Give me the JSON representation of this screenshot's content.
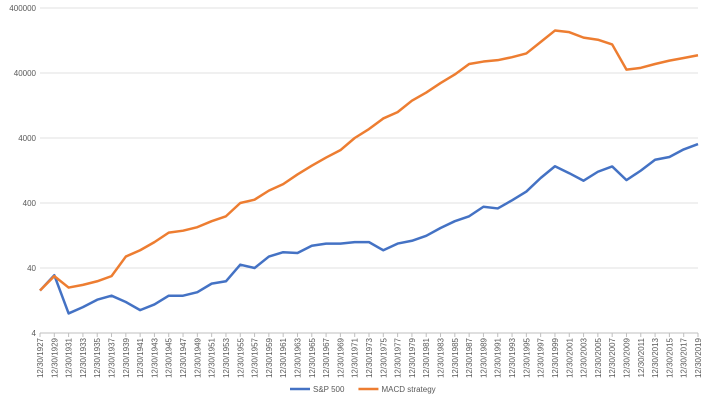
{
  "chart_data": {
    "type": "line",
    "log_scale": true,
    "grid": true,
    "legend": "bottom",
    "categories": [
      "12/30/1927",
      "12/30/1929",
      "12/30/1931",
      "12/30/1933",
      "12/30/1935",
      "12/30/1937",
      "12/30/1939",
      "12/30/1941",
      "12/30/1943",
      "12/30/1945",
      "12/30/1947",
      "12/30/1949",
      "12/30/1951",
      "12/30/1953",
      "12/30/1955",
      "12/30/1957",
      "12/30/1959",
      "12/30/1961",
      "12/30/1963",
      "12/30/1965",
      "12/30/1967",
      "12/30/1969",
      "12/30/1971",
      "12/30/1973",
      "12/30/1975",
      "12/30/1977",
      "12/30/1979",
      "12/30/1981",
      "12/30/1983",
      "12/30/1985",
      "12/30/1987",
      "12/30/1989",
      "12/30/1991",
      "12/30/1993",
      "12/30/1995",
      "12/30/1997",
      "12/30/1999",
      "12/30/2001",
      "12/30/2003",
      "12/30/2005",
      "12/30/2007",
      "12/30/2009",
      "12/30/2011",
      "12/30/2013",
      "12/30/2015",
      "12/30/2017",
      "12/30/2019"
    ],
    "series": [
      {
        "name": "S&P 500",
        "color": "#4472c4",
        "values": [
          18,
          31,
          8,
          10,
          13,
          15,
          12,
          9,
          11,
          15,
          15,
          17,
          23,
          25,
          45,
          40,
          60,
          70,
          68,
          88,
          95,
          95,
          100,
          100,
          75,
          95,
          105,
          125,
          165,
          210,
          250,
          350,
          330,
          440,
          600,
          970,
          1470,
          1150,
          880,
          1210,
          1460,
          900,
          1260,
          1850,
          2040,
          2670,
          3230
        ]
      },
      {
        "name": "MACD strategy",
        "color": "#ed7d31",
        "values": [
          18,
          30,
          20,
          22,
          25,
          30,
          60,
          75,
          100,
          140,
          150,
          170,
          210,
          250,
          400,
          450,
          620,
          780,
          1100,
          1500,
          2000,
          2600,
          4000,
          5500,
          8000,
          10000,
          15000,
          20000,
          28000,
          38000,
          55000,
          60000,
          63000,
          70000,
          80000,
          120000,
          180000,
          170000,
          140000,
          130000,
          110000,
          45000,
          48000,
          55000,
          62000,
          68000,
          75000
        ]
      }
    ],
    "ylim": [
      4,
      400000
    ],
    "yticks": [
      4,
      40,
      400,
      4000,
      40000,
      400000
    ]
  }
}
